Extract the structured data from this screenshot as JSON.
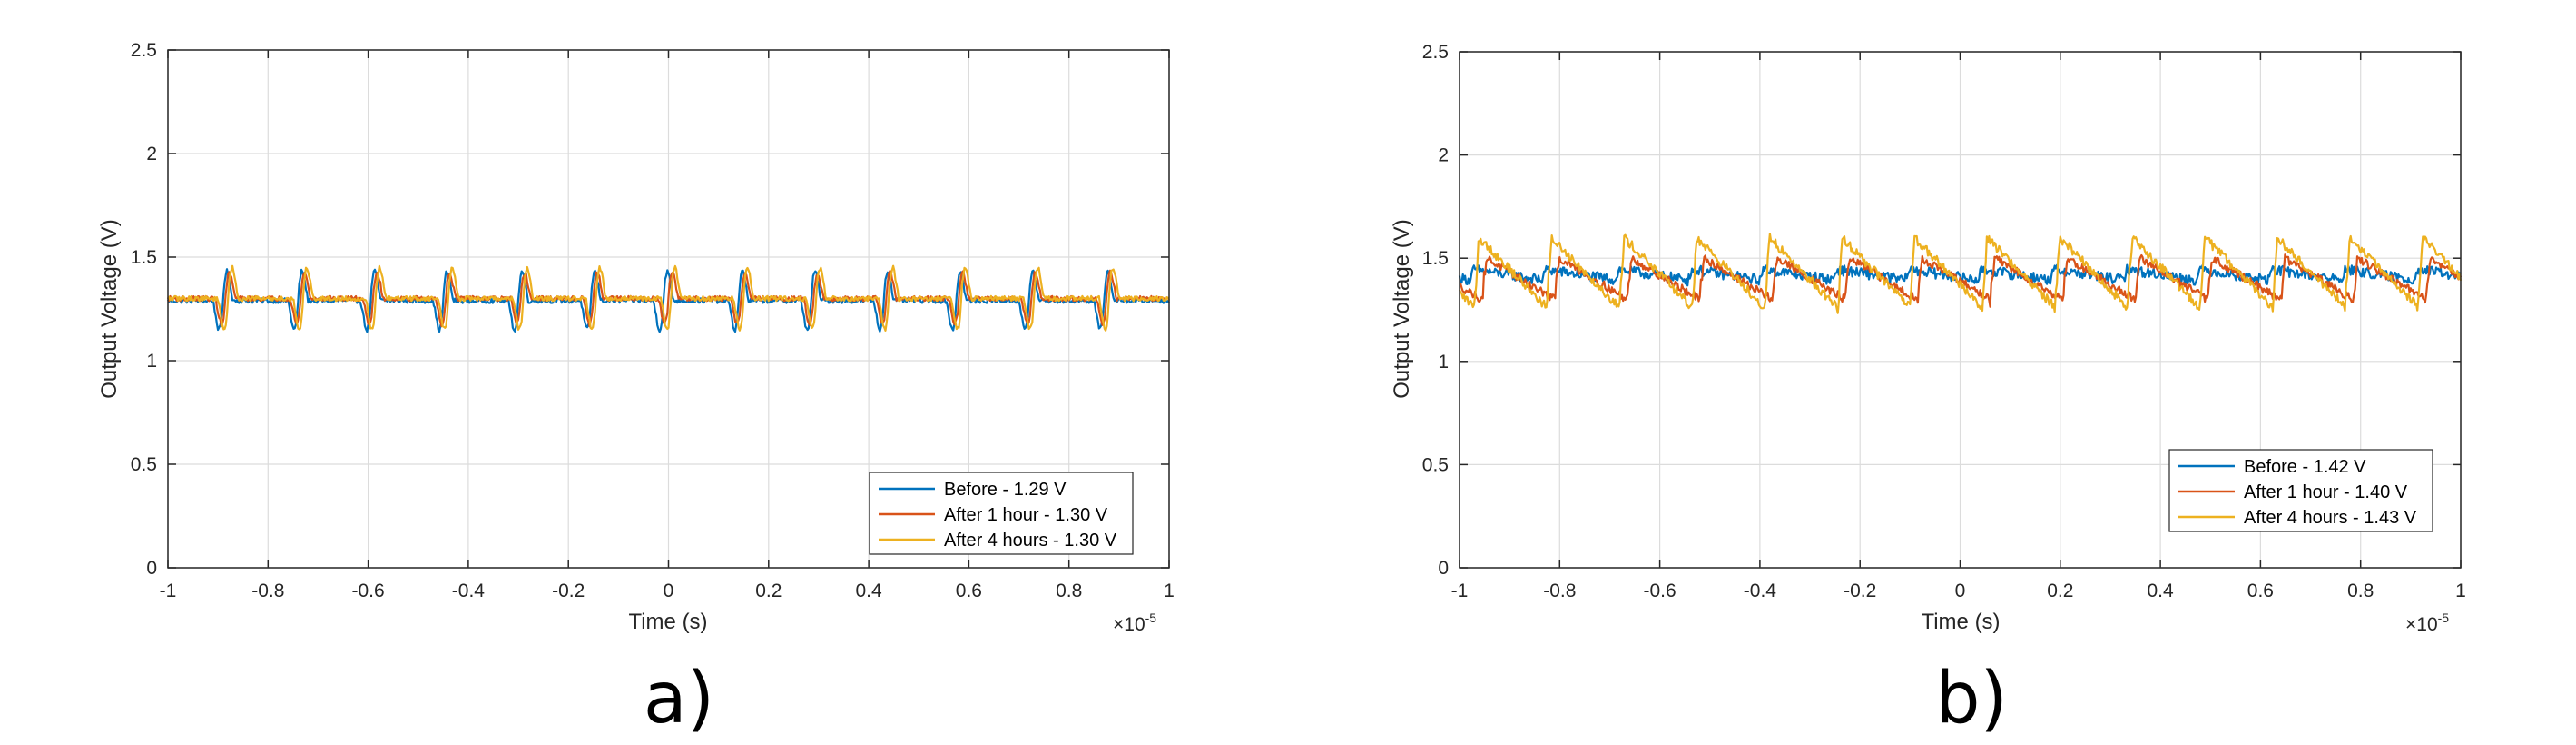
{
  "chart_data": [
    {
      "type": "line",
      "panel_label": "a)",
      "xlabel": "Time (s)",
      "ylabel": "Output Voltage (V)",
      "x_multiplier": "×10",
      "x_exponent": "-5",
      "xlim": [
        -1,
        1
      ],
      "ylim": [
        0,
        2.5
      ],
      "xticks": [
        "-1",
        "-0.8",
        "-0.6",
        "-0.4",
        "-0.2",
        "0",
        "0.2",
        "0.4",
        "0.6",
        "0.8",
        "1"
      ],
      "yticks": [
        "0",
        "0.5",
        "1",
        "1.5",
        "2",
        "2.5"
      ],
      "grid": true,
      "legend_position": "bottom-right",
      "series": [
        {
          "name": "Before - 1.29 V",
          "color": "#0072BD",
          "mean": 1.29,
          "noise": 0.012,
          "spike_amp": 0.17,
          "spike_centers": [
            -0.89,
            -0.74,
            -0.595,
            -0.45,
            -0.3,
            -0.155,
            -0.01,
            0.14,
            0.285,
            0.43,
            0.575,
            0.72,
            0.87
          ]
        },
        {
          "name": "After 1 hour - 1.30 V",
          "color": "#D95319",
          "mean": 1.3,
          "noise": 0.012,
          "spike_amp": 0.15,
          "spike_centers": [
            -0.885,
            -0.735,
            -0.59,
            -0.445,
            -0.295,
            -0.15,
            0.0,
            0.145,
            0.29,
            0.435,
            0.58,
            0.725,
            0.875
          ]
        },
        {
          "name": "After 4 hours - 1.30 V",
          "color": "#EDB120",
          "mean": 1.3,
          "noise": 0.012,
          "spike_amp": 0.18,
          "spike_centers": [
            -0.88,
            -0.73,
            -0.585,
            -0.44,
            -0.29,
            -0.145,
            0.005,
            0.15,
            0.295,
            0.44,
            0.585,
            0.73,
            0.88
          ]
        }
      ]
    },
    {
      "type": "line",
      "panel_label": "b)",
      "xlabel": "Time (s)",
      "ylabel": "Output Voltage (V)",
      "x_multiplier": "×10",
      "x_exponent": "-5",
      "xlim": [
        -1,
        1
      ],
      "ylim": [
        0,
        2.5
      ],
      "xticks": [
        "-1",
        "-0.8",
        "-0.6",
        "-0.4",
        "-0.2",
        "0",
        "0.2",
        "0.4",
        "0.6",
        "0.8",
        "1"
      ],
      "yticks": [
        "0",
        "0.5",
        "1",
        "1.5",
        "2",
        "2.5"
      ],
      "grid": true,
      "legend_position": "bottom-right",
      "series": [
        {
          "name": "Before - 1.42 V",
          "color": "#0072BD",
          "mean": 1.42,
          "noise": 0.025,
          "period": 0.145,
          "phase": -0.98,
          "swing": 0.05
        },
        {
          "name": "After 1 hour - 1.40 V",
          "color": "#D95319",
          "mean": 1.4,
          "noise": 0.02,
          "period": 0.145,
          "phase": -0.955,
          "swing": 0.2
        },
        {
          "name": "After 4 hours - 1.43 V",
          "color": "#EDB120",
          "mean": 1.43,
          "noise": 0.022,
          "period": 0.145,
          "phase": -0.97,
          "swing": 0.34
        }
      ]
    }
  ]
}
